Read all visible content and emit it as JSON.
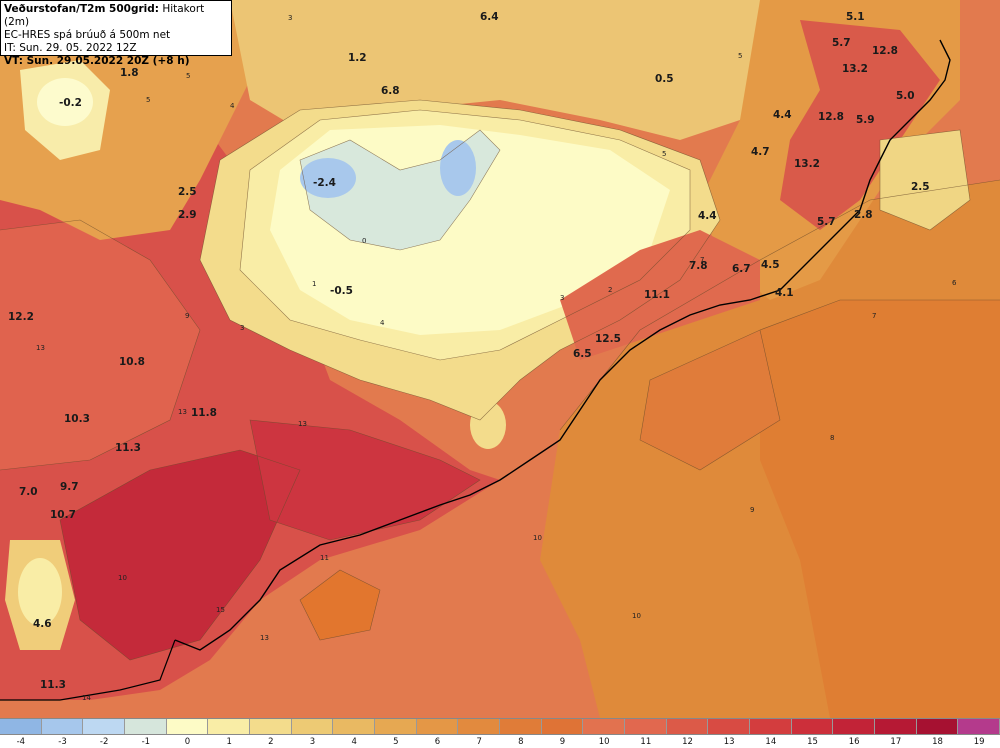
{
  "header": {
    "title_bold": "Veðurstofan/T2m 500grid:",
    "title_rest": " Hitakort (2m)",
    "model": "EC-HRES spá brúuð á 500m net",
    "issue_time": "IT: Sun. 29. 05. 2022 12Z",
    "valid_time": "VT: Sun. 29.05.2022 20Z (+8 h)"
  },
  "map_labels": [
    {
      "text": "6.4"
    },
    {
      "text": "5.1"
    },
    {
      "text": "5.7"
    },
    {
      "text": "12.8"
    },
    {
      "text": "1.8"
    },
    {
      "text": "1.2"
    },
    {
      "text": "13.2"
    },
    {
      "text": "5.0"
    },
    {
      "text": "-0.2"
    },
    {
      "text": "0.5"
    },
    {
      "text": "6.8"
    },
    {
      "text": "4.4"
    },
    {
      "text": "12.8"
    },
    {
      "text": "5.9"
    },
    {
      "text": "4.7"
    },
    {
      "text": "13.2"
    },
    {
      "text": "-2.4"
    },
    {
      "text": "2.5"
    },
    {
      "text": "2.5"
    },
    {
      "text": "2.9"
    },
    {
      "text": "4.4"
    },
    {
      "text": "5.7"
    },
    {
      "text": "2.8"
    },
    {
      "text": "7.8"
    },
    {
      "text": "6.7"
    },
    {
      "text": "4.5"
    },
    {
      "text": "-0.5"
    },
    {
      "text": "11.1"
    },
    {
      "text": "4.1"
    },
    {
      "text": "12.2"
    },
    {
      "text": "12.5"
    },
    {
      "text": "6.5"
    },
    {
      "text": "10.8"
    },
    {
      "text": "10.3"
    },
    {
      "text": "11.8"
    },
    {
      "text": "11.3"
    },
    {
      "text": "7.0"
    },
    {
      "text": "9.7"
    },
    {
      "text": "10.7"
    },
    {
      "text": "4.6"
    },
    {
      "text": "11.3"
    }
  ],
  "legend": {
    "ticks": [
      "-4",
      "-3",
      "-2",
      "-1",
      "0",
      "1",
      "2",
      "3",
      "4",
      "5",
      "6",
      "7",
      "8",
      "9",
      "10",
      "11",
      "12",
      "13",
      "14",
      "15",
      "16",
      "17",
      "18",
      "19"
    ],
    "colors": [
      "#8fb6e4",
      "#a6c7ec",
      "#bdd8f2",
      "#d6e6dc",
      "#fdfbc6",
      "#f9eda6",
      "#f3dc8c",
      "#edca74",
      "#e9b962",
      "#e6a852",
      "#e49746",
      "#e28a3e",
      "#e07c38",
      "#df7336",
      "#e2724f",
      "#e1684f",
      "#dc5a48",
      "#d84b43",
      "#d33d3e",
      "#cc2f3a",
      "#c22337",
      "#b61934",
      "#a61131",
      "#b43a8c"
    ]
  }
}
